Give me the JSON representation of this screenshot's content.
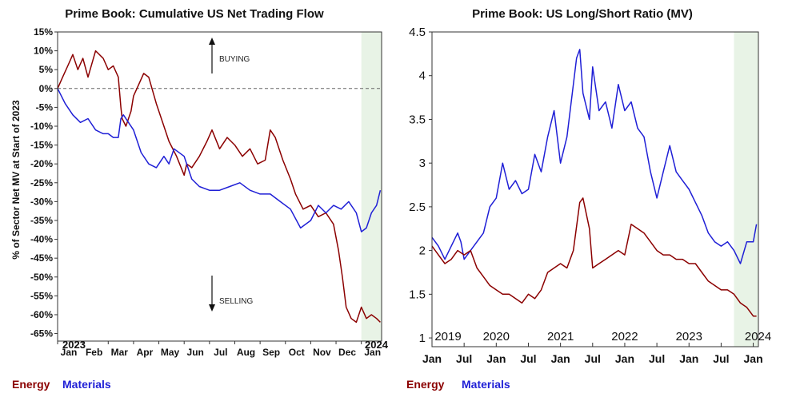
{
  "colors": {
    "energy": "#8b0000",
    "materials": "#1f1fd6",
    "shade": "#e8f3e6"
  },
  "chart_data": [
    {
      "type": "line",
      "title": "Prime Book: Cumulative US Net Trading Flow",
      "ylabel": "% of Sector Net MV at Start of 2023",
      "ylim": [
        -67,
        15
      ],
      "yticks": [
        15,
        10,
        5,
        0,
        -5,
        -10,
        -15,
        -20,
        -25,
        -30,
        -35,
        -40,
        -45,
        -50,
        -55,
        -60,
        -65
      ],
      "ytick_labels": [
        "15%",
        "10%",
        "5%",
        "0%",
        "-5%",
        "-10%",
        "-15%",
        "-20%",
        "-25%",
        "-30%",
        "-35%",
        "-40%",
        "-45%",
        "-50%",
        "-55%",
        "-60%",
        "-65%"
      ],
      "xlim": [
        0,
        12.8
      ],
      "xticks": [
        0,
        1,
        2,
        3,
        4,
        5,
        6,
        7,
        8,
        9,
        10,
        11,
        12
      ],
      "xtick_labels": [
        "Jan",
        "Feb",
        "Mar",
        "Apr",
        "May",
        "Jun",
        "Jul",
        "Aug",
        "Sep",
        "Oct",
        "Nov",
        "Dec",
        "Jan"
      ],
      "year_labels": [
        "2023",
        "2024"
      ],
      "shaded_x": [
        12.0,
        12.8
      ],
      "zero_line": true,
      "annotations": {
        "buying": "BUYING",
        "selling": "SELLING"
      },
      "series": [
        {
          "name": "Energy",
          "x": [
            0,
            0.2,
            0.4,
            0.6,
            0.8,
            1.0,
            1.2,
            1.5,
            1.8,
            2.0,
            2.2,
            2.4,
            2.5,
            2.55,
            2.7,
            2.9,
            3.0,
            3.2,
            3.4,
            3.6,
            3.9,
            4.2,
            4.4,
            4.7,
            5.0,
            5.1,
            5.3,
            5.6,
            5.9,
            6.1,
            6.4,
            6.7,
            7.0,
            7.3,
            7.6,
            7.9,
            8.2,
            8.4,
            8.6,
            8.9,
            9.2,
            9.4,
            9.7,
            10.0,
            10.3,
            10.6,
            10.9,
            11.1,
            11.25,
            11.4,
            11.6,
            11.8,
            12.0,
            12.2,
            12.4,
            12.6,
            12.75
          ],
          "y": [
            0,
            3,
            6,
            9,
            5,
            8,
            3,
            10,
            8,
            5,
            6,
            3,
            -5,
            -8,
            -10,
            -6,
            -2,
            1,
            4,
            3,
            -4,
            -10,
            -14,
            -18,
            -23,
            -20,
            -21,
            -18,
            -14,
            -11,
            -16,
            -13,
            -15,
            -18,
            -16,
            -20,
            -19,
            -11,
            -13,
            -19,
            -24,
            -28,
            -32,
            -31,
            -34,
            -33,
            -36,
            -43,
            -50,
            -58,
            -61,
            -62,
            -58,
            -61,
            -60,
            -61,
            -62
          ]
        },
        {
          "name": "Materials",
          "x": [
            0,
            0.3,
            0.6,
            0.9,
            1.2,
            1.5,
            1.8,
            2.0,
            2.2,
            2.4,
            2.5,
            2.6,
            2.8,
            3.0,
            3.3,
            3.6,
            3.9,
            4.2,
            4.4,
            4.6,
            5.0,
            5.3,
            5.6,
            6.0,
            6.4,
            6.8,
            7.2,
            7.6,
            8.0,
            8.4,
            8.8,
            9.2,
            9.6,
            10.0,
            10.3,
            10.6,
            10.9,
            11.2,
            11.5,
            11.8,
            12.0,
            12.2,
            12.4,
            12.6,
            12.75
          ],
          "y": [
            0,
            -4,
            -7,
            -9,
            -8,
            -11,
            -12,
            -12,
            -13,
            -13,
            -8,
            -7,
            -9,
            -11,
            -17,
            -20,
            -21,
            -18,
            -20,
            -16,
            -18,
            -24,
            -26,
            -27,
            -27,
            -26,
            -25,
            -27,
            -28,
            -28,
            -30,
            -32,
            -37,
            -35,
            -31,
            -33,
            -31,
            -32,
            -30,
            -33,
            -38,
            -37,
            -33,
            -31,
            -27
          ]
        }
      ],
      "legend": [
        "Energy",
        "Materials"
      ]
    },
    {
      "type": "line",
      "title": "Prime Book: US Long/Short Ratio (MV)",
      "ylim": [
        0.9,
        4.5
      ],
      "yticks": [
        1,
        1.5,
        2,
        2.5,
        3,
        3.5,
        4,
        4.5
      ],
      "ytick_labels": [
        "1",
        "1.5",
        "2",
        "2.5",
        "3",
        "3.5",
        "4",
        "4.5"
      ],
      "xlim": [
        2019.0,
        2024.08
      ],
      "xticks": [
        2019.0,
        2019.5,
        2020.0,
        2020.5,
        2021.0,
        2021.5,
        2022.0,
        2022.5,
        2023.0,
        2023.5,
        2024.0
      ],
      "xtick_labels": [
        "Jan",
        "Jul",
        "Jan",
        "Jul",
        "Jan",
        "Jul",
        "Jan",
        "Jul",
        "Jan",
        "Jul",
        "Jan"
      ],
      "year_labels": [
        "2019",
        "2020",
        "2021",
        "2022",
        "2023",
        "2024"
      ],
      "shaded_x": [
        2023.7,
        2024.08
      ],
      "series": [
        {
          "name": "Materials",
          "x": [
            2019.0,
            2019.1,
            2019.2,
            2019.3,
            2019.4,
            2019.45,
            2019.5,
            2019.6,
            2019.7,
            2019.8,
            2019.9,
            2020.0,
            2020.1,
            2020.2,
            2020.3,
            2020.4,
            2020.5,
            2020.6,
            2020.7,
            2020.8,
            2020.9,
            2021.0,
            2021.1,
            2021.2,
            2021.25,
            2021.3,
            2021.35,
            2021.45,
            2021.5,
            2021.6,
            2021.7,
            2021.8,
            2021.9,
            2022.0,
            2022.1,
            2022.2,
            2022.3,
            2022.4,
            2022.5,
            2022.6,
            2022.7,
            2022.8,
            2022.9,
            2023.0,
            2023.1,
            2023.2,
            2023.3,
            2023.4,
            2023.5,
            2023.6,
            2023.7,
            2023.8,
            2023.9,
            2024.0,
            2024.05
          ],
          "y": [
            2.15,
            2.05,
            1.9,
            2.05,
            2.2,
            2.1,
            1.9,
            2.0,
            2.1,
            2.2,
            2.5,
            2.6,
            3.0,
            2.7,
            2.8,
            2.65,
            2.7,
            3.1,
            2.9,
            3.3,
            3.6,
            3.0,
            3.3,
            3.9,
            4.2,
            4.3,
            3.8,
            3.5,
            4.1,
            3.6,
            3.7,
            3.4,
            3.9,
            3.6,
            3.7,
            3.4,
            3.3,
            2.9,
            2.6,
            2.9,
            3.2,
            2.9,
            2.8,
            2.7,
            2.55,
            2.4,
            2.2,
            2.1,
            2.05,
            2.1,
            2.0,
            1.85,
            2.1,
            2.1,
            2.3
          ]
        },
        {
          "name": "Energy",
          "x": [
            2019.0,
            2019.1,
            2019.2,
            2019.3,
            2019.4,
            2019.5,
            2019.6,
            2019.7,
            2019.8,
            2019.9,
            2020.0,
            2020.1,
            2020.2,
            2020.3,
            2020.4,
            2020.5,
            2020.6,
            2020.7,
            2020.8,
            2020.9,
            2021.0,
            2021.1,
            2021.2,
            2021.3,
            2021.35,
            2021.45,
            2021.5,
            2021.6,
            2021.7,
            2021.8,
            2021.9,
            2022.0,
            2022.1,
            2022.2,
            2022.3,
            2022.4,
            2022.5,
            2022.6,
            2022.7,
            2022.8,
            2022.9,
            2023.0,
            2023.1,
            2023.2,
            2023.3,
            2023.4,
            2023.5,
            2023.6,
            2023.7,
            2023.8,
            2023.9,
            2024.0,
            2024.05
          ],
          "y": [
            2.05,
            1.95,
            1.85,
            1.9,
            2.0,
            1.95,
            2.0,
            1.8,
            1.7,
            1.6,
            1.55,
            1.5,
            1.5,
            1.45,
            1.4,
            1.5,
            1.45,
            1.55,
            1.75,
            1.8,
            1.85,
            1.8,
            2.0,
            2.55,
            2.6,
            2.25,
            1.8,
            1.85,
            1.9,
            1.95,
            2.0,
            1.95,
            2.3,
            2.25,
            2.2,
            2.1,
            2.0,
            1.95,
            1.95,
            1.9,
            1.9,
            1.85,
            1.85,
            1.75,
            1.65,
            1.6,
            1.55,
            1.55,
            1.5,
            1.4,
            1.35,
            1.25,
            1.25
          ]
        }
      ],
      "legend": [
        "Energy",
        "Materials"
      ]
    }
  ]
}
